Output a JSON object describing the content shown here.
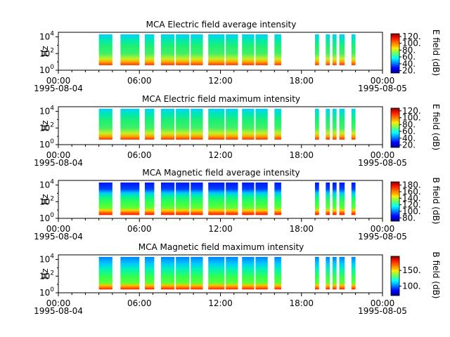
{
  "figure": {
    "instrument": "MCA",
    "x_axis": {
      "tick_labels": [
        "00:00",
        "06:00",
        "12:00",
        "18:00",
        "00:00"
      ],
      "date_labels": [
        "1995-08-04",
        "1995-08-05"
      ],
      "range_hours": [
        0,
        24
      ],
      "minor_tick_step_hours": 1
    },
    "y_axis_label": "Hz"
  },
  "chart_data": [
    {
      "type": "heatmap",
      "title": "MCA  Electric field average intensity",
      "ylabel": "Hz",
      "yscale": "log",
      "y_ticks": [
        {
          "base": "10",
          "exp": "0",
          "value": 1
        },
        {
          "base": "10",
          "exp": "2",
          "value": 100
        },
        {
          "base": "10",
          "exp": "4",
          "value": 10000
        }
      ],
      "colorbar": {
        "label": "E field (dB)",
        "range": [
          13,
          128
        ],
        "ticks": [
          "20.",
          "40.",
          "60.",
          "80.",
          "100.",
          "120."
        ]
      },
      "intervals_hours": [
        [
          3.0,
          4.0
        ],
        [
          4.6,
          6.0
        ],
        [
          6.4,
          7.1
        ],
        [
          7.6,
          8.6
        ],
        [
          8.7,
          9.7
        ],
        [
          9.8,
          10.7
        ],
        [
          11.1,
          12.3
        ],
        [
          12.4,
          13.3
        ],
        [
          13.6,
          14.5
        ],
        [
          14.6,
          15.5
        ],
        [
          16.0,
          16.5
        ],
        [
          19.0,
          19.3
        ],
        [
          19.8,
          20.1
        ],
        [
          20.3,
          20.6
        ],
        [
          20.8,
          21.2
        ],
        [
          21.7,
          22.0
        ]
      ]
    },
    {
      "type": "heatmap",
      "title": "MCA  Electric field maximum intensity",
      "ylabel": "Hz",
      "yscale": "log",
      "y_ticks": [
        {
          "base": "10",
          "exp": "0",
          "value": 1
        },
        {
          "base": "10",
          "exp": "2",
          "value": 100
        },
        {
          "base": "10",
          "exp": "4",
          "value": 10000
        }
      ],
      "colorbar": {
        "label": "E field (dB)",
        "range": [
          13,
          128
        ],
        "ticks": [
          "20.",
          "40.",
          "60.",
          "80.",
          "100.",
          "120."
        ]
      },
      "intervals_hours": [
        [
          3.0,
          4.0
        ],
        [
          4.6,
          6.0
        ],
        [
          6.4,
          7.1
        ],
        [
          7.6,
          8.6
        ],
        [
          8.7,
          9.7
        ],
        [
          9.8,
          10.7
        ],
        [
          11.1,
          12.3
        ],
        [
          12.4,
          13.3
        ],
        [
          13.6,
          14.5
        ],
        [
          14.6,
          15.5
        ],
        [
          16.0,
          16.5
        ],
        [
          19.0,
          19.3
        ],
        [
          19.8,
          20.1
        ],
        [
          20.3,
          20.6
        ],
        [
          20.8,
          21.2
        ],
        [
          21.7,
          22.0
        ]
      ]
    },
    {
      "type": "heatmap",
      "title": "MCA  Magnetic field average intensity",
      "ylabel": "Hz",
      "yscale": "log",
      "y_ticks": [
        {
          "base": "10",
          "exp": "0",
          "value": 1
        },
        {
          "base": "10",
          "exp": "2",
          "value": 100
        },
        {
          "base": "10",
          "exp": "4",
          "value": 10000
        }
      ],
      "colorbar": {
        "label": "B field (dB)",
        "range": [
          70,
          190
        ],
        "ticks": [
          "80.",
          "100.",
          "120.",
          "140.",
          "160.",
          "180."
        ]
      },
      "intervals_hours": [
        [
          3.0,
          4.0
        ],
        [
          4.6,
          6.0
        ],
        [
          6.4,
          7.1
        ],
        [
          7.6,
          8.6
        ],
        [
          8.7,
          9.7
        ],
        [
          9.8,
          10.7
        ],
        [
          11.1,
          12.3
        ],
        [
          12.4,
          13.3
        ],
        [
          13.6,
          14.5
        ],
        [
          14.6,
          15.5
        ],
        [
          16.0,
          16.5
        ],
        [
          19.0,
          19.3
        ],
        [
          19.8,
          20.1
        ],
        [
          20.3,
          20.6
        ],
        [
          20.8,
          21.2
        ],
        [
          21.7,
          22.0
        ]
      ]
    },
    {
      "type": "heatmap",
      "title": "MCA  Magnetic field maximum intensity",
      "ylabel": "Hz",
      "yscale": "log",
      "y_ticks": [
        {
          "base": "10",
          "exp": "0",
          "value": 1
        },
        {
          "base": "10",
          "exp": "2",
          "value": 100
        },
        {
          "base": "10",
          "exp": "4",
          "value": 10000
        }
      ],
      "colorbar": {
        "label": "B field (dB)",
        "range": [
          70,
          195
        ],
        "ticks": [
          "100.",
          "150."
        ]
      },
      "intervals_hours": [
        [
          3.0,
          4.0
        ],
        [
          4.6,
          6.0
        ],
        [
          6.4,
          7.1
        ],
        [
          7.6,
          8.6
        ],
        [
          8.7,
          9.7
        ],
        [
          9.8,
          10.7
        ],
        [
          11.1,
          12.3
        ],
        [
          12.4,
          13.3
        ],
        [
          13.6,
          14.5
        ],
        [
          14.6,
          15.5
        ],
        [
          16.0,
          16.5
        ],
        [
          19.0,
          19.3
        ],
        [
          19.8,
          20.1
        ],
        [
          20.3,
          20.6
        ],
        [
          20.8,
          21.2
        ],
        [
          21.7,
          22.0
        ]
      ]
    }
  ]
}
